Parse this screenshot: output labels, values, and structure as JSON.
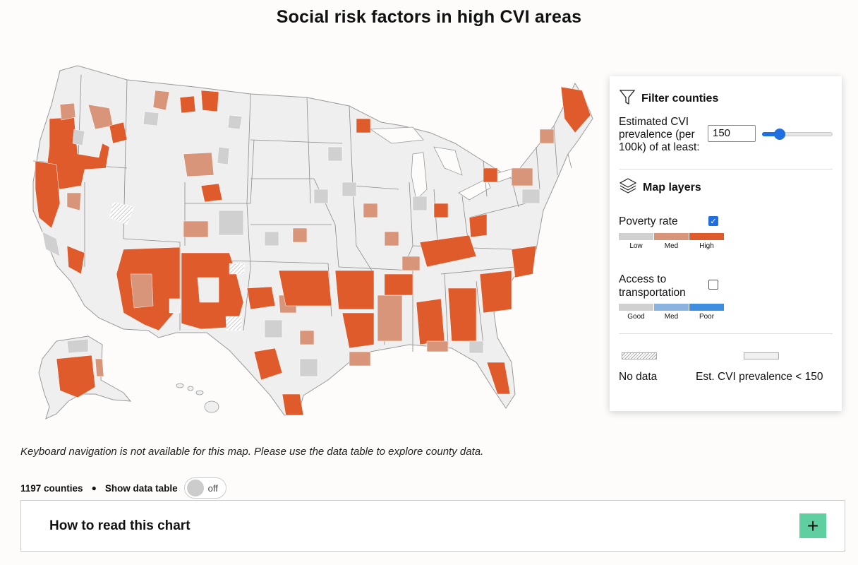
{
  "page": {
    "title": "Social risk factors in high CVI areas"
  },
  "colors": {
    "poverty_low": "#d0d0d0",
    "poverty_med": "#d8957a",
    "poverty_high": "#df5b2c",
    "transport_good": "#d0d0d0",
    "transport_med": "#8bb3df",
    "transport_poor": "#3d8ee0",
    "below_threshold": "#f0f0f0",
    "accent": "#1f6fe0",
    "expand_button": "#5fcf9f"
  },
  "filter": {
    "heading": "Filter counties",
    "cvi_label": "Estimated CVI prevalence (per 100k) of at least:",
    "cvi_value": "150",
    "slider_fraction": 0.25
  },
  "layers": {
    "heading": "Map layers",
    "poverty": {
      "label": "Poverty rate",
      "checked": true,
      "legend": [
        "Low",
        "Med",
        "High"
      ]
    },
    "transport": {
      "label": "Access to transportation",
      "checked": false,
      "legend": [
        "Good",
        "Med",
        "Poor"
      ]
    }
  },
  "legend_extra": {
    "no_data": "No data",
    "below": "Est. CVI prevalence < 150"
  },
  "keyboard_note": "Keyboard navigation is not available for this map. Please use the data table to explore county data.",
  "status": {
    "counties": "1197 counties",
    "show_table_label": "Show data table",
    "toggle_state": "off"
  },
  "howto": {
    "title": "How to read this chart",
    "button_icon": "+"
  },
  "icons": {
    "filter": "funnel-icon",
    "layers": "layers-icon",
    "expand": "plus-icon"
  }
}
